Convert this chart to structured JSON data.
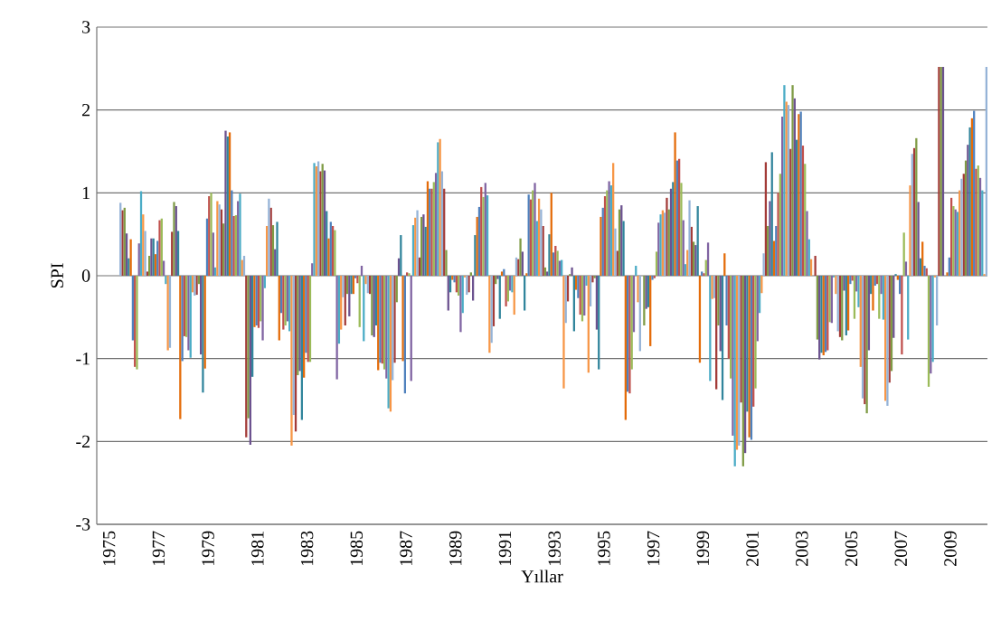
{
  "chart_data": {
    "type": "bar",
    "xlabel": "Yıllar",
    "ylabel": "SPI",
    "categories": [
      "1975",
      null,
      "1977",
      null,
      "1979",
      null,
      "1981",
      null,
      "1983",
      null,
      "1985",
      null,
      "1987",
      null,
      "1989",
      null,
      "1991",
      null,
      "1993",
      null,
      "1995",
      null,
      "1997",
      null,
      "1999",
      null,
      "2001",
      null,
      "2003",
      null,
      "2005",
      null,
      "2007",
      null,
      "2009",
      null
    ],
    "series": [
      {
        "color": "#a33b38",
        "values": [
          null,
          0.79,
          0.05,
          0.53,
          -0.23,
          0.8,
          -1.95,
          0.82,
          -1.88,
          1.26,
          -0.6,
          -0.22,
          -1.05,
          0.22,
          1.05,
          -0.2,
          -0.61,
          0.2,
          0.6,
          -0.31,
          -0.08,
          0.3,
          0.0,
          0.94,
          0.59,
          -1.37,
          -1.53,
          1.37,
          1.53,
          0.24,
          -0.74,
          -1.55,
          -1.29,
          1.54,
          2.52,
          1.23
        ]
      },
      {
        "color": "#7f9b45",
        "values": [
          null,
          0.82,
          0.24,
          0.89,
          -0.1,
          0.63,
          -1.72,
          0.61,
          -1.2,
          1.35,
          -0.22,
          -0.72,
          -0.32,
          0.71,
          0.31,
          0.04,
          -0.1,
          0.45,
          0.1,
          0.02,
          -0.03,
          0.8,
          -0.6,
          0.8,
          0.41,
          -0.6,
          -2.3,
          0.6,
          2.3,
          -0.77,
          -0.78,
          -1.66,
          -1.15,
          1.66,
          2.52,
          1.39
        ]
      },
      {
        "color": "#6c528f",
        "values": [
          null,
          0.51,
          0.45,
          0.84,
          -0.95,
          1.75,
          -2.04,
          0.32,
          -1.15,
          1.27,
          -0.49,
          -0.74,
          0.21,
          0.74,
          -0.42,
          -0.3,
          -0.04,
          0.29,
          0.05,
          0.1,
          -0.65,
          0.85,
          -0.4,
          1.05,
          0.37,
          -0.91,
          -2.14,
          0.9,
          2.14,
          -1.01,
          -0.18,
          -0.9,
          -0.75,
          0.89,
          2.52,
          1.58
        ]
      },
      {
        "color": "#31859c",
        "values": [
          null,
          0.21,
          0.45,
          0.54,
          -1.41,
          1.68,
          -1.22,
          0.65,
          -1.74,
          0.78,
          -0.22,
          -0.6,
          0.49,
          0.59,
          -0.2,
          0.49,
          -0.52,
          -0.42,
          0.5,
          -0.67,
          -1.13,
          0.66,
          -0.38,
          1.13,
          0.84,
          -1.5,
          -1.64,
          1.49,
          1.64,
          -0.93,
          -0.72,
          -0.22,
          0.02,
          0.21,
          0.0,
          1.79
        ]
      },
      {
        "color": "#e46c0a",
        "values": [
          null,
          0.44,
          0.26,
          -1.73,
          -1.12,
          1.73,
          -0.62,
          -0.78,
          -1.23,
          0.45,
          -0.22,
          -1.14,
          -1.03,
          1.14,
          -0.05,
          0.71,
          0.05,
          0.03,
          1.0,
          -0.17,
          0.71,
          -1.74,
          -0.85,
          1.73,
          -1.05,
          0.27,
          -1.95,
          0.42,
          1.95,
          -0.96,
          -0.66,
          -0.42,
          -0.05,
          0.41,
          0.04,
          1.9
        ]
      },
      {
        "color": "#4f81bd",
        "values": [
          null,
          -0.78,
          0.42,
          -1.03,
          0.69,
          1.03,
          -0.6,
          -0.45,
          -0.93,
          0.65,
          -0.03,
          -1.05,
          -1.42,
          1.05,
          -0.08,
          0.83,
          0.08,
          0.98,
          0.28,
          -0.27,
          0.82,
          -1.4,
          -0.05,
          1.39,
          0.05,
          -0.6,
          -1.98,
          0.6,
          1.98,
          -0.92,
          -0.1,
          -0.12,
          -0.22,
          0.12,
          0.22,
          1.99
        ]
      },
      {
        "color": "#c0504d",
        "values": [
          null,
          -1.1,
          0.67,
          -0.73,
          0.96,
          0.72,
          -0.63,
          -0.65,
          -1.04,
          0.6,
          -0.09,
          -1.06,
          0.04,
          1.05,
          -0.2,
          1.07,
          -0.37,
          0.92,
          0.36,
          -0.47,
          0.96,
          -1.42,
          -0.03,
          1.41,
          0.03,
          -1.0,
          -1.58,
          1.0,
          1.57,
          -0.9,
          -0.06,
          -0.1,
          -0.95,
          0.09,
          0.94,
          1.29
        ]
      },
      {
        "color": "#9bbb59",
        "values": [
          null,
          -1.13,
          0.69,
          -0.74,
          1.0,
          0.73,
          -0.55,
          -0.6,
          -1.04,
          0.55,
          -0.62,
          -1.13,
          0.03,
          1.13,
          -0.24,
          0.95,
          -0.31,
          1.03,
          0.3,
          -0.55,
          1.03,
          -1.13,
          0.29,
          1.12,
          0.19,
          -1.24,
          -1.36,
          1.23,
          1.35,
          -0.56,
          -0.52,
          -0.52,
          0.52,
          -1.34,
          0.84,
          1.33
        ]
      },
      {
        "color": "#8064a2",
        "values": [
          null,
          0.39,
          0.18,
          -0.9,
          0.52,
          0.9,
          -0.78,
          -0.55,
          0.15,
          -1.25,
          0.12,
          -1.24,
          -1.27,
          1.24,
          -0.68,
          1.12,
          -0.18,
          1.12,
          0.18,
          -0.48,
          1.14,
          -0.68,
          0.64,
          0.67,
          0.4,
          -1.93,
          -0.79,
          1.92,
          0.78,
          -0.57,
          -0.19,
          -0.22,
          0.17,
          -1.18,
          0.8,
          1.18
        ]
      },
      {
        "color": "#4bacc6",
        "values": [
          null,
          1.02,
          -0.1,
          -0.99,
          0.1,
          0.99,
          -0.15,
          -0.67,
          1.36,
          -0.82,
          -0.79,
          -1.6,
          0.61,
          1.61,
          -0.45,
          0.97,
          -0.2,
          0.66,
          0.19,
          -0.12,
          1.09,
          0.12,
          0.74,
          0.14,
          -1.27,
          -2.3,
          -0.45,
          2.3,
          0.44,
          -0.02,
          -0.38,
          -0.53,
          -0.77,
          -1.04,
          0.77,
          1.03
        ]
      },
      {
        "color": "#f79646",
        "values": [
          null,
          0.74,
          -0.9,
          -0.2,
          0.9,
          0.19,
          0.6,
          -2.05,
          1.32,
          -0.65,
          -0.1,
          -1.64,
          0.7,
          1.65,
          -0.02,
          -0.93,
          -0.47,
          0.93,
          -1.36,
          -1.17,
          1.36,
          -0.32,
          0.79,
          0.31,
          -0.28,
          -2.1,
          -0.21,
          2.1,
          0.2,
          -0.22,
          -1.1,
          -1.51,
          1.09,
          -0.02,
          1.03,
          0.02
        ]
      },
      {
        "color": "#95b3d7",
        "values": [
          0.88,
          0.54,
          -0.87,
          -0.24,
          0.86,
          0.24,
          0.93,
          -1.68,
          1.38,
          -0.26,
          -0.21,
          -1.26,
          0.79,
          1.26,
          -0.23,
          -0.81,
          0.22,
          0.8,
          -0.57,
          -0.37,
          0.57,
          -0.91,
          0.76,
          0.91,
          -0.27,
          -2.05,
          0.27,
          2.06,
          0.0,
          -0.67,
          -1.48,
          -1.57,
          1.47,
          -0.6,
          1.17,
          2.52
        ]
      }
    ],
    "ylim": [
      -3,
      3
    ],
    "yticks": [
      -3,
      -2,
      -1,
      0,
      1,
      2,
      3
    ],
    "grid": "y"
  }
}
